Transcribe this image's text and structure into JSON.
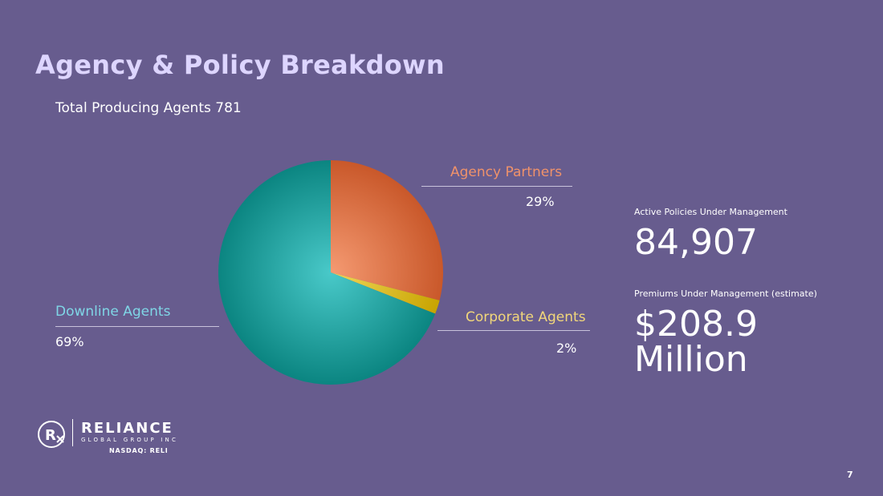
{
  "title": "Agency & Policy Breakdown",
  "subtitle": "Total Producing Agents 781",
  "chart_data": {
    "type": "pie",
    "slices": [
      {
        "label": "Agency Partners",
        "value": 29,
        "display": "29%",
        "color": "#e07a4a"
      },
      {
        "label": "Corporate Agents",
        "value": 2,
        "display": "2%",
        "color": "#e3c336"
      },
      {
        "label": "Downline Agents",
        "value": 69,
        "display": "69%",
        "color": "#27a6a6"
      }
    ]
  },
  "stats": {
    "policies_label": "Active Policies Under Management",
    "policies_value": "84,907",
    "premiums_label": "Premiums Under Management (estimate)",
    "premiums_value_line1": "$208.9",
    "premiums_value_line2": "Million"
  },
  "logo": {
    "name": "RELIANCE",
    "sub": "GLOBAL GROUP INC",
    "ticker": "NASDAQ: RELI"
  },
  "page_number": "7",
  "colors": {
    "background": "#675c8e",
    "title": "#ddd5ff",
    "agency_label": "#f0926a",
    "corporate_label": "#f2d77a",
    "downline_label": "#7fd6e6"
  }
}
